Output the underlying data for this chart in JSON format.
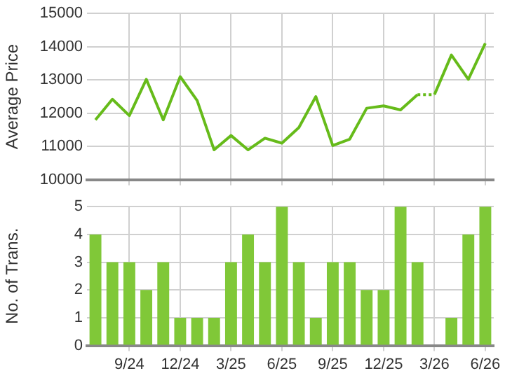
{
  "chart_data": [
    {
      "type": "line",
      "ylabel": "Average Price",
      "categories": [
        null,
        null,
        null,
        null,
        null,
        null,
        null,
        null,
        null,
        null,
        null,
        null,
        null,
        null,
        null,
        null,
        null,
        null,
        null,
        null,
        null,
        null,
        null,
        null
      ],
      "ylim": [
        10000,
        15000
      ],
      "yticks": [
        10000,
        11000,
        12000,
        13000,
        14000,
        15000
      ],
      "grid": true,
      "tick_labels": "y",
      "marker": "none",
      "legend": false,
      "series": [
        {
          "color": "#66bb1a",
          "line_style": "solid",
          "values": [
            11800,
            12420,
            11930,
            13020,
            11800,
            13100,
            12380,
            10900,
            11330,
            10900,
            11250,
            11100,
            11570,
            12500,
            11030,
            11220,
            12150,
            12220,
            12100,
            12560,
            null,
            null,
            null,
            null
          ]
        },
        {
          "color": "#66bb1a",
          "line_style": "dotted",
          "values": [
            null,
            null,
            null,
            null,
            null,
            null,
            null,
            null,
            null,
            null,
            null,
            null,
            null,
            null,
            null,
            null,
            null,
            null,
            null,
            12560,
            12560,
            null,
            null,
            null
          ]
        },
        {
          "color": "#66bb1a",
          "line_style": "solid",
          "values": [
            null,
            null,
            null,
            null,
            null,
            null,
            null,
            null,
            null,
            null,
            null,
            null,
            null,
            null,
            null,
            null,
            null,
            null,
            null,
            null,
            12560,
            13750,
            13020,
            14100
          ]
        }
      ]
    },
    {
      "type": "bar",
      "ylabel": "No. of Trans.",
      "categories": [
        null,
        null,
        "9/24",
        null,
        null,
        "12/24",
        null,
        null,
        "3/25",
        null,
        null,
        "6/25",
        null,
        null,
        "9/25",
        null,
        null,
        "12/25",
        null,
        null,
        "3/26",
        null,
        null,
        "6/26"
      ],
      "ylim": [
        0,
        5
      ],
      "yticks": [
        0,
        1,
        2,
        3,
        4,
        5
      ],
      "grid": true,
      "legend": false,
      "series": [
        {
          "color": "#80c838",
          "values": [
            4,
            3,
            3,
            2,
            3,
            1,
            1,
            1,
            3,
            4,
            3,
            5,
            3,
            1,
            3,
            3,
            2,
            2,
            5,
            3,
            0,
            1,
            4,
            5
          ]
        }
      ]
    }
  ]
}
